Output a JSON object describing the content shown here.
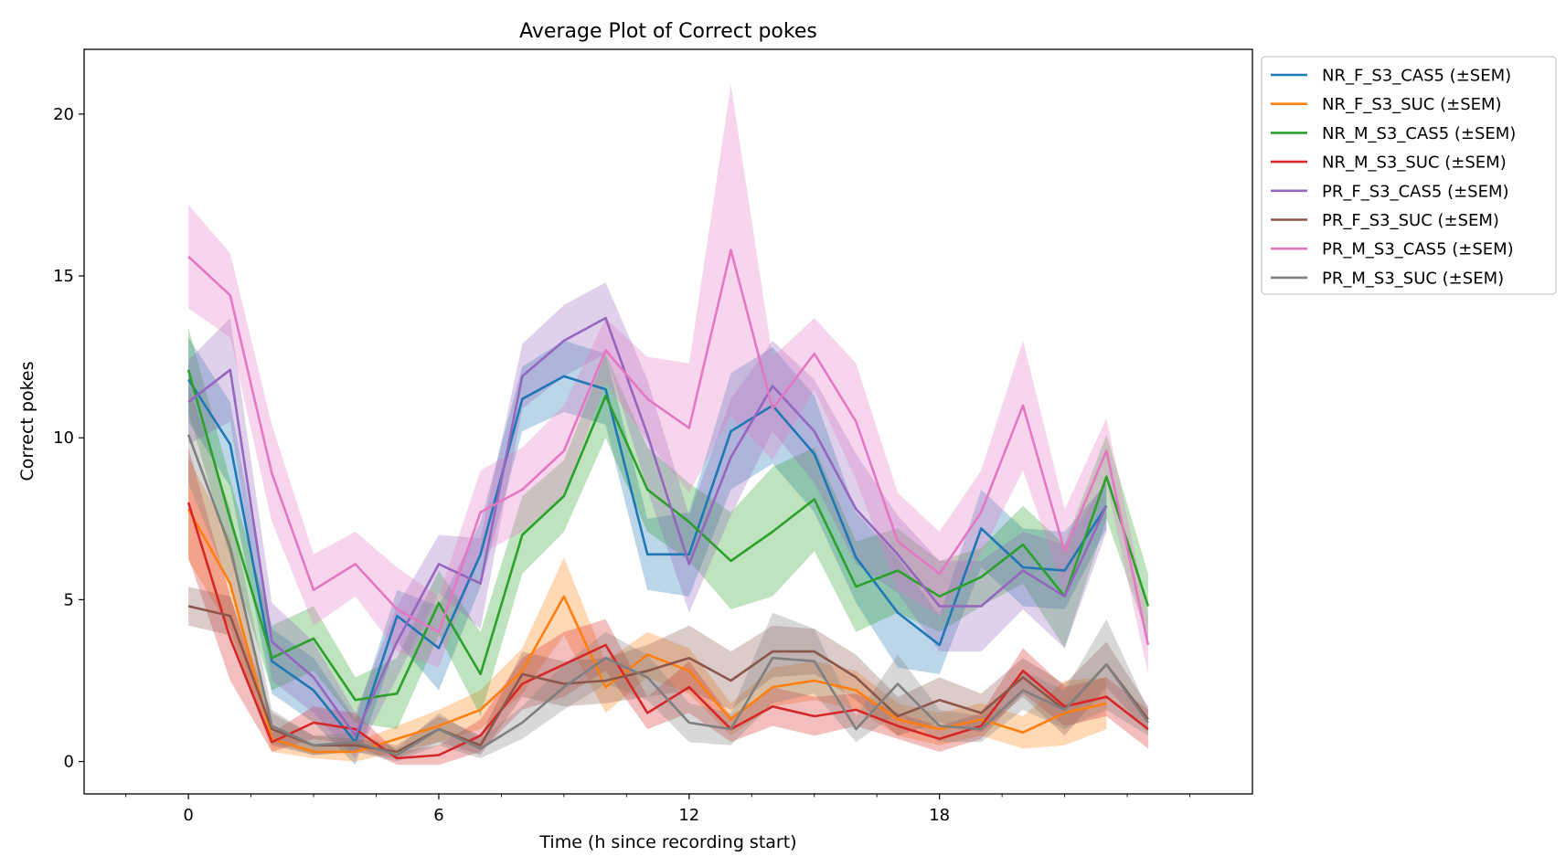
{
  "chart_data": {
    "type": "line",
    "title": "Average Plot of Correct pokes",
    "xlabel": "Time (h since recording start)",
    "ylabel": "Correct pokes",
    "xlim": [
      -2.5,
      25.5
    ],
    "ylim": [
      -1.0,
      22.0
    ],
    "x_ticks": [
      0,
      6,
      12,
      18
    ],
    "x_minor_ticks": [
      -1.5,
      1.5,
      3,
      4.5,
      7.5,
      9,
      10.5,
      13.5,
      15,
      16.5,
      19.5,
      21,
      22.5,
      24
    ],
    "y_ticks": [
      0,
      5,
      10,
      15,
      20
    ],
    "grid": false,
    "legend_position": "outside-top-right",
    "x": [
      0,
      1,
      2,
      3,
      4,
      5,
      6,
      7,
      8,
      9,
      10,
      11,
      12,
      13,
      14,
      15,
      16,
      17,
      18,
      19,
      20,
      21,
      22,
      23
    ],
    "series": [
      {
        "name": "NR_F_S3_CAS5 (±SEM)",
        "color": "#1f77b4",
        "values": [
          11.8,
          9.8,
          3.1,
          2.2,
          0.6,
          4.5,
          3.5,
          6.4,
          11.2,
          11.9,
          11.5,
          6.4,
          6.4,
          10.2,
          11.0,
          9.5,
          6.3,
          4.6,
          3.6,
          7.2,
          6.0,
          5.9,
          7.9,
          null
        ],
        "sem": [
          1.3,
          1.3,
          1.0,
          1.0,
          0.7,
          0.8,
          1.3,
          1.0,
          1.0,
          1.1,
          1.1,
          1.1,
          1.3,
          1.8,
          1.8,
          1.8,
          1.4,
          1.7,
          0.9,
          1.2,
          1.2,
          1.2,
          0.7,
          null
        ]
      },
      {
        "name": "NR_F_S3_SUC (±SEM)",
        "color": "#ff7f0e",
        "values": [
          7.8,
          5.5,
          0.7,
          0.3,
          0.3,
          0.7,
          1.1,
          1.6,
          2.8,
          5.1,
          2.3,
          3.3,
          2.8,
          1.3,
          2.3,
          2.5,
          2.2,
          1.3,
          1.0,
          1.3,
          0.9,
          1.5,
          1.8,
          null
        ],
        "sem": [
          1.6,
          1.4,
          0.4,
          0.2,
          0.3,
          0.4,
          0.5,
          0.6,
          0.7,
          1.2,
          0.8,
          0.7,
          0.7,
          0.5,
          0.6,
          0.6,
          0.6,
          0.5,
          0.5,
          0.5,
          0.5,
          1.0,
          0.8,
          null
        ]
      },
      {
        "name": "NR_M_S3_CAS5 (±SEM)",
        "color": "#2ca02c",
        "values": [
          12.1,
          7.5,
          3.2,
          3.8,
          1.9,
          2.1,
          4.9,
          2.7,
          7.0,
          8.2,
          11.3,
          8.4,
          7.4,
          6.2,
          7.1,
          8.1,
          5.4,
          5.9,
          5.1,
          5.7,
          6.7,
          5.1,
          8.8,
          4.8
        ],
        "sem": [
          1.3,
          1.2,
          1.0,
          1.0,
          0.7,
          1.1,
          1.0,
          1.3,
          1.2,
          1.1,
          1.3,
          1.3,
          1.2,
          1.5,
          2.0,
          1.6,
          1.4,
          1.3,
          1.1,
          0.9,
          1.2,
          1.6,
          1.3,
          1.0
        ]
      },
      {
        "name": "NR_M_S3_SUC (±SEM)",
        "color": "#d62728",
        "values": [
          8.0,
          3.8,
          0.6,
          1.2,
          1.0,
          0.1,
          0.2,
          0.8,
          2.4,
          3.0,
          3.6,
          1.5,
          2.3,
          1.0,
          1.7,
          1.4,
          1.6,
          1.1,
          0.7,
          1.1,
          2.8,
          1.7,
          2.0,
          1.0
        ],
        "sem": [
          1.7,
          1.3,
          0.3,
          0.5,
          0.5,
          0.2,
          0.3,
          0.5,
          0.8,
          1.0,
          0.8,
          0.5,
          0.8,
          0.4,
          0.6,
          0.6,
          0.5,
          0.4,
          0.4,
          0.4,
          0.7,
          0.6,
          0.6,
          0.6
        ]
      },
      {
        "name": "PR_F_S3_CAS5 (±SEM)",
        "color": "#9467bd",
        "values": [
          11.1,
          12.1,
          3.7,
          2.6,
          0.8,
          3.7,
          6.1,
          5.5,
          11.9,
          13.0,
          13.7,
          10.1,
          6.1,
          9.4,
          11.6,
          10.2,
          7.8,
          6.4,
          4.8,
          4.8,
          5.9,
          5.1,
          7.9,
          null
        ],
        "sem": [
          1.3,
          1.6,
          1.2,
          1.1,
          0.7,
          1.1,
          0.9,
          1.4,
          1.0,
          1.1,
          1.1,
          1.7,
          1.5,
          1.8,
          1.4,
          1.6,
          1.7,
          1.2,
          1.4,
          1.4,
          1.2,
          1.6,
          0.8,
          null
        ]
      },
      {
        "name": "PR_F_S3_SUC (±SEM)",
        "color": "#8c564b",
        "values": [
          4.8,
          4.5,
          1.0,
          0.5,
          0.5,
          0.3,
          1.0,
          0.5,
          2.7,
          2.4,
          2.5,
          2.8,
          3.2,
          2.5,
          3.4,
          3.4,
          2.6,
          1.4,
          1.9,
          1.5,
          2.6,
          1.6,
          3.0,
          1.3
        ],
        "sem": [
          0.6,
          0.6,
          0.5,
          0.3,
          0.2,
          0.2,
          0.4,
          0.3,
          0.7,
          0.7,
          0.7,
          0.8,
          1.0,
          0.9,
          0.8,
          0.7,
          0.7,
          0.6,
          0.7,
          0.6,
          0.6,
          0.8,
          0.7,
          0.4
        ]
      },
      {
        "name": "PR_M_S3_CAS5 (±SEM)",
        "color": "#e377c2",
        "values": [
          15.6,
          14.4,
          8.9,
          5.3,
          6.1,
          4.7,
          4.0,
          7.7,
          8.4,
          9.6,
          12.7,
          11.2,
          10.3,
          15.8,
          10.9,
          12.6,
          10.5,
          6.8,
          5.8,
          7.7,
          11.0,
          6.5,
          9.6,
          3.6
        ],
        "sem": [
          1.6,
          1.3,
          1.5,
          1.1,
          1.0,
          1.3,
          1.1,
          1.3,
          1.3,
          1.4,
          1.0,
          1.3,
          2.0,
          5.1,
          1.6,
          1.1,
          1.8,
          1.5,
          1.3,
          1.3,
          2.0,
          1.3,
          1.0,
          0.9
        ]
      },
      {
        "name": "PR_M_S3_SUC (±SEM)",
        "color": "#7f7f7f",
        "values": [
          10.1,
          6.6,
          1.1,
          0.5,
          0.6,
          0.2,
          1.0,
          0.4,
          1.2,
          2.3,
          3.2,
          2.6,
          1.2,
          1.0,
          3.2,
          3.1,
          1.0,
          2.4,
          1.1,
          1.0,
          2.2,
          1.6,
          3.0,
          1.2
        ],
        "sem": [
          1.5,
          1.2,
          0.5,
          0.3,
          0.3,
          0.2,
          0.5,
          0.3,
          0.5,
          0.7,
          0.8,
          0.7,
          0.6,
          0.5,
          1.4,
          1.0,
          0.4,
          0.9,
          0.5,
          0.4,
          0.6,
          0.6,
          1.4,
          0.4
        ]
      }
    ]
  }
}
